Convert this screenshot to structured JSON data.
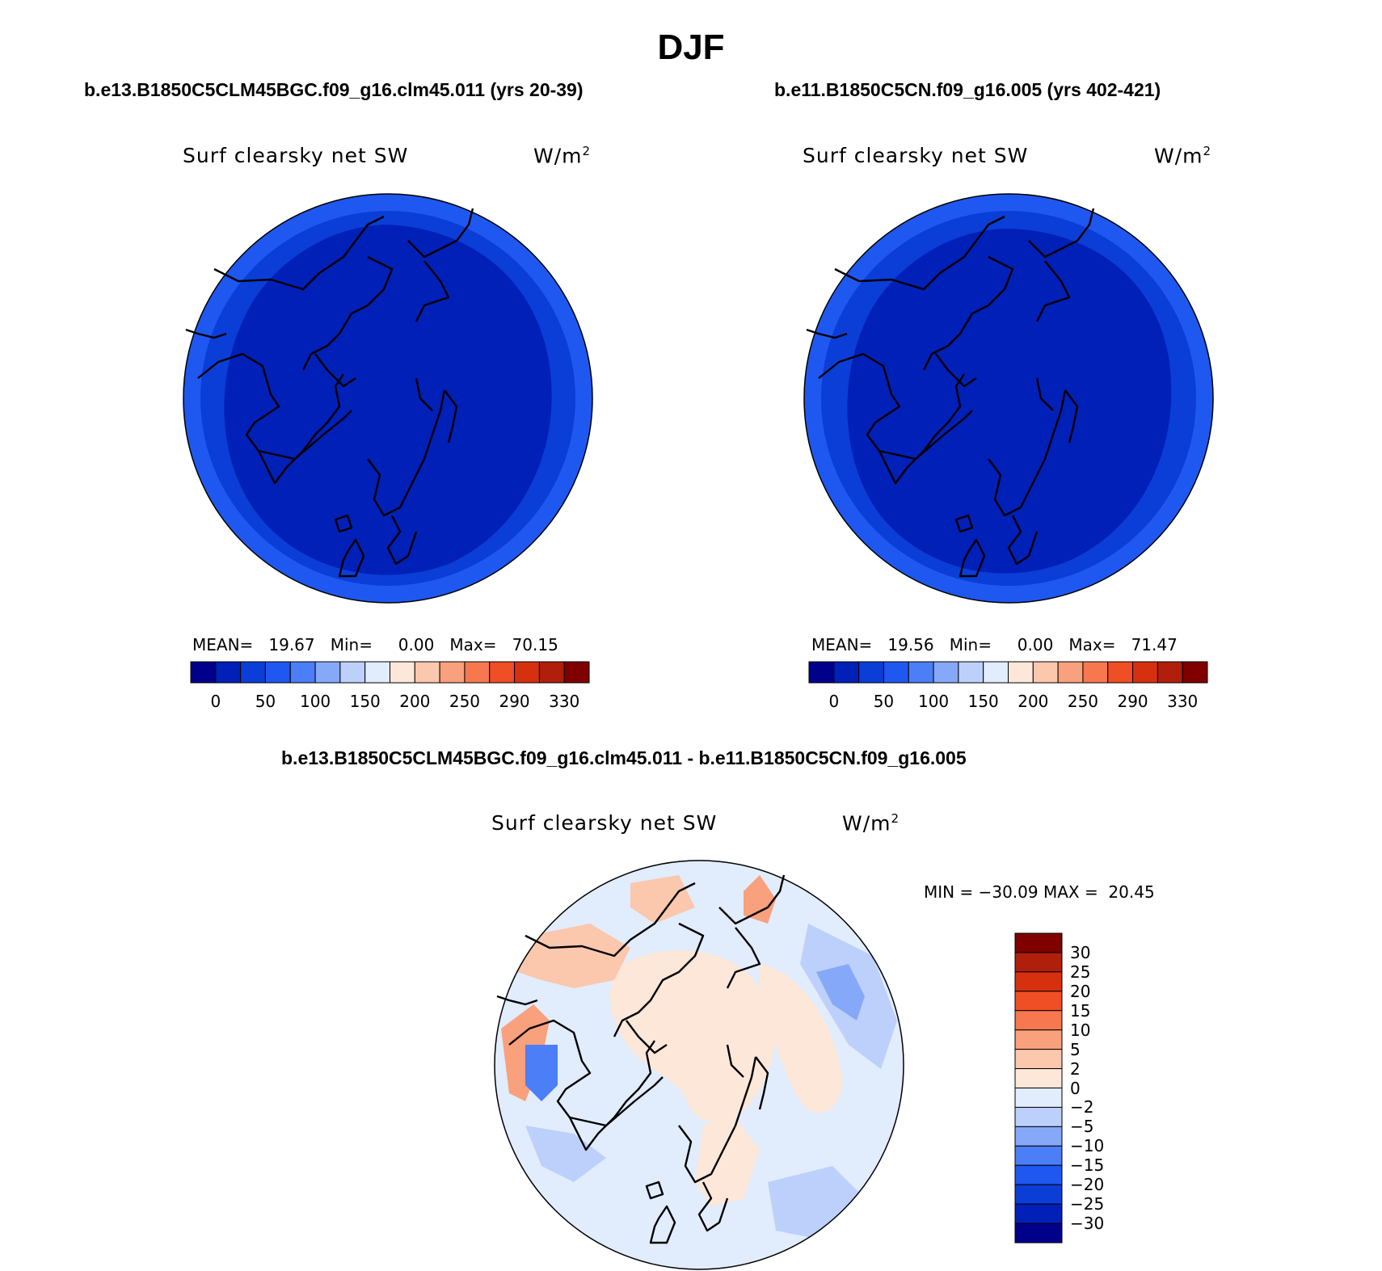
{
  "title": "DJF",
  "panels": [
    {
      "case": "b.e13.B1850C5CLM45BGC.f09_g16.clm45.011 (yrs 20-39)",
      "variable": "Surf clearsky net SW",
      "units": "W/m",
      "units_sup": "2",
      "stats": {
        "mean_label": "MEAN=",
        "mean": "19.67",
        "min_label": "Min=",
        "min": "0.00",
        "max_label": "Max=",
        "max": "70.15"
      }
    },
    {
      "case": "b.e11.B1850C5CN.f09_g16.005 (yrs 402-421)",
      "variable": "Surf clearsky net SW",
      "units": "W/m",
      "units_sup": "2",
      "stats": {
        "mean_label": "MEAN=",
        "mean": "19.56",
        "min_label": "Min=",
        "min": "0.00",
        "max_label": "Max=",
        "max": "71.47"
      }
    }
  ],
  "diff_panel": {
    "case": "b.e13.B1850C5CLM45BGC.f09_g16.clm45.011 - b.e11.B1850C5CN.f09_g16.005",
    "variable": "Surf clearsky net SW",
    "units": "W/m",
    "units_sup": "2",
    "minmax": "MIN = −30.09 MAX =  20.45"
  },
  "colorbar_abs": {
    "colors": [
      "#00008b",
      "#0020b8",
      "#0a3ed6",
      "#1f58f0",
      "#4b7ef7",
      "#86a8f8",
      "#bcd0fb",
      "#e1ecfc",
      "#fde7d9",
      "#fbc7ad",
      "#f9a07c",
      "#f7784f",
      "#f04e24",
      "#d7300f",
      "#b01e0c",
      "#800000"
    ],
    "tick_labels": [
      "0",
      "50",
      "100",
      "150",
      "200",
      "250",
      "290",
      "330"
    ]
  },
  "colorbar_diff": {
    "colors": [
      "#00008b",
      "#0020b8",
      "#0a3ed6",
      "#1f58f0",
      "#4b7ef7",
      "#86a8f8",
      "#bcd0fb",
      "#e1ecfc",
      "#fde7d9",
      "#fbc7ad",
      "#f9a07c",
      "#f7784f",
      "#f04e24",
      "#d7300f",
      "#b01e0c",
      "#800000"
    ],
    "tick_labels": [
      "30",
      "25",
      "20",
      "15",
      "10",
      "5",
      "2",
      "0",
      "−2",
      "−5",
      "−10",
      "−15",
      "−20",
      "−25",
      "−30"
    ]
  },
  "map_colors": {
    "abs_outer": "#1f58f0",
    "abs_mid": "#0a3ed6",
    "abs_inner": "#0020b8",
    "diff_base": "#e1ecfc",
    "diff_pos": "#fde7d9",
    "diff_pos2": "#fbc7ad",
    "diff_pos3": "#f9a07c",
    "diff_neg": "#bcd0fb",
    "diff_neg2": "#86a8f8",
    "diff_neg3": "#4b7ef7"
  }
}
